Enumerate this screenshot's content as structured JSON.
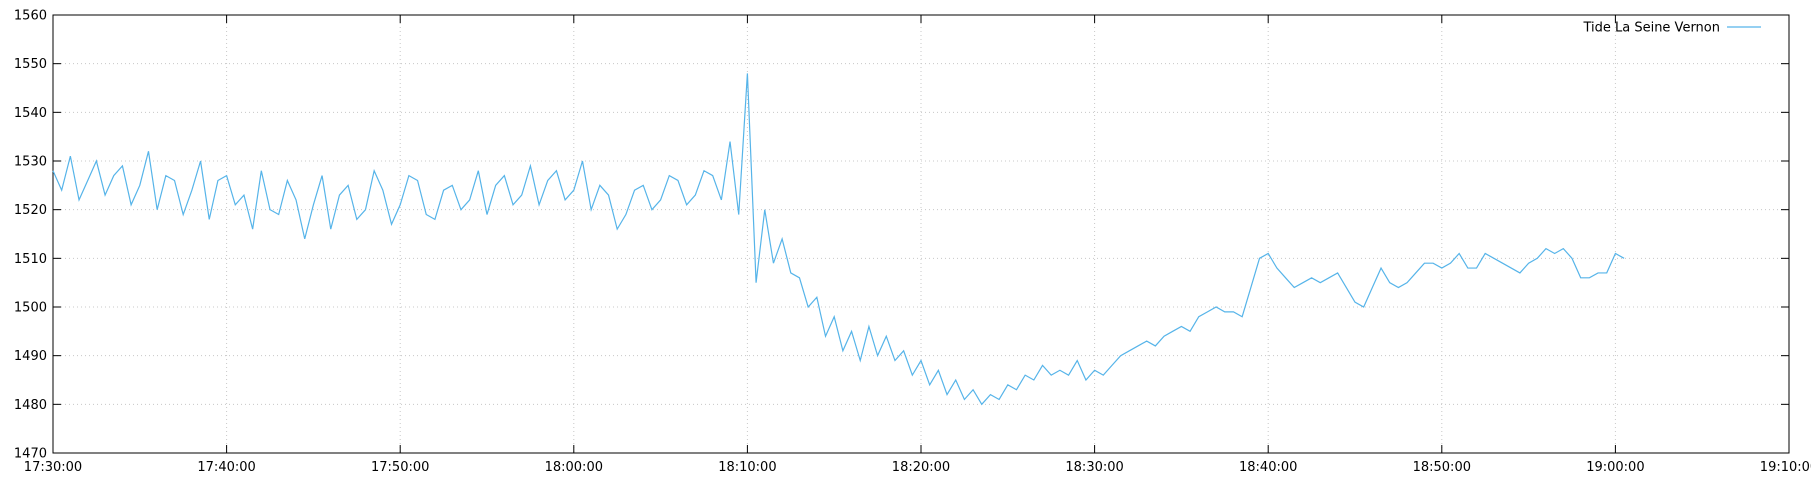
{
  "chart_data": {
    "type": "line",
    "x": [
      "17:30:00",
      "17:30:30",
      "17:31:00",
      "17:31:30",
      "17:32:00",
      "17:32:30",
      "17:33:00",
      "17:33:30",
      "17:34:00",
      "17:34:30",
      "17:35:00",
      "17:35:30",
      "17:36:00",
      "17:36:30",
      "17:37:00",
      "17:37:30",
      "17:38:00",
      "17:38:30",
      "17:39:00",
      "17:39:30",
      "17:40:00",
      "17:40:30",
      "17:41:00",
      "17:41:30",
      "17:42:00",
      "17:42:30",
      "17:43:00",
      "17:43:30",
      "17:44:00",
      "17:44:30",
      "17:45:00",
      "17:45:30",
      "17:46:00",
      "17:46:30",
      "17:47:00",
      "17:47:30",
      "17:48:00",
      "17:48:30",
      "17:49:00",
      "17:49:30",
      "17:50:00",
      "17:50:30",
      "17:51:00",
      "17:51:30",
      "17:52:00",
      "17:52:30",
      "17:53:00",
      "17:53:30",
      "17:54:00",
      "17:54:30",
      "17:55:00",
      "17:55:30",
      "17:56:00",
      "17:56:30",
      "17:57:00",
      "17:57:30",
      "17:58:00",
      "17:58:30",
      "17:59:00",
      "17:59:30",
      "18:00:00",
      "18:00:30",
      "18:01:00",
      "18:01:30",
      "18:02:00",
      "18:02:30",
      "18:03:00",
      "18:03:30",
      "18:04:00",
      "18:04:30",
      "18:05:00",
      "18:05:30",
      "18:06:00",
      "18:06:30",
      "18:07:00",
      "18:07:30",
      "18:08:00",
      "18:08:30",
      "18:09:00",
      "18:09:30",
      "18:10:00",
      "18:10:30",
      "18:11:00",
      "18:11:30",
      "18:12:00",
      "18:12:30",
      "18:13:00",
      "18:13:30",
      "18:14:00",
      "18:14:30",
      "18:15:00",
      "18:15:30",
      "18:16:00",
      "18:16:30",
      "18:17:00",
      "18:17:30",
      "18:18:00",
      "18:18:30",
      "18:19:00",
      "18:19:30",
      "18:20:00",
      "18:20:30",
      "18:21:00",
      "18:21:30",
      "18:22:00",
      "18:22:30",
      "18:23:00",
      "18:23:30",
      "18:24:00",
      "18:24:30",
      "18:25:00",
      "18:25:30",
      "18:26:00",
      "18:26:30",
      "18:27:00",
      "18:27:30",
      "18:28:00",
      "18:28:30",
      "18:29:00",
      "18:29:30",
      "18:30:00",
      "18:30:30",
      "18:31:00",
      "18:31:30",
      "18:32:00",
      "18:32:30",
      "18:33:00",
      "18:33:30",
      "18:34:00",
      "18:34:30",
      "18:35:00",
      "18:35:30",
      "18:36:00",
      "18:36:30",
      "18:37:00",
      "18:37:30",
      "18:38:00",
      "18:38:30",
      "18:39:00",
      "18:39:30",
      "18:40:00",
      "18:40:30",
      "18:41:00",
      "18:41:30",
      "18:42:00",
      "18:42:30",
      "18:43:00",
      "18:43:30",
      "18:44:00",
      "18:44:30",
      "18:45:00",
      "18:45:30",
      "18:46:00",
      "18:46:30",
      "18:47:00",
      "18:47:30",
      "18:48:00",
      "18:48:30",
      "18:49:00",
      "18:49:30",
      "18:50:00",
      "18:50:30",
      "18:51:00",
      "18:51:30",
      "18:52:00",
      "18:52:30",
      "18:53:00",
      "18:53:30",
      "18:54:00",
      "18:54:30",
      "18:55:00",
      "18:55:30",
      "18:56:00",
      "18:56:30",
      "18:57:00",
      "18:57:30",
      "18:58:00",
      "18:58:30",
      "18:59:00",
      "18:59:30",
      "19:00:00",
      "19:00:30"
    ],
    "series": [
      {
        "name": "Tide La Seine Vernon",
        "color": "#56b4e9",
        "values": [
          1528,
          1524,
          1531,
          1522,
          1526,
          1530,
          1523,
          1527,
          1529,
          1521,
          1525,
          1532,
          1520,
          1527,
          1526,
          1519,
          1524,
          1530,
          1518,
          1526,
          1527,
          1521,
          1523,
          1516,
          1528,
          1520,
          1519,
          1526,
          1522,
          1514,
          1521,
          1527,
          1516,
          1523,
          1525,
          1518,
          1520,
          1528,
          1524,
          1517,
          1521,
          1527,
          1526,
          1519,
          1518,
          1524,
          1525,
          1520,
          1522,
          1528,
          1519,
          1525,
          1527,
          1521,
          1523,
          1529,
          1521,
          1526,
          1528,
          1522,
          1524,
          1530,
          1520,
          1525,
          1523,
          1516,
          1519,
          1524,
          1525,
          1520,
          1522,
          1527,
          1526,
          1521,
          1523,
          1528,
          1527,
          1522,
          1534,
          1519,
          1548,
          1505,
          1520,
          1509,
          1514,
          1507,
          1506,
          1500,
          1502,
          1494,
          1498,
          1491,
          1495,
          1489,
          1496,
          1490,
          1494,
          1489,
          1491,
          1486,
          1489,
          1484,
          1487,
          1482,
          1485,
          1481,
          1483,
          1480,
          1482,
          1481,
          1484,
          1483,
          1486,
          1485,
          1488,
          1486,
          1487,
          1486,
          1489,
          1485,
          1487,
          1486,
          1488,
          1490,
          1491,
          1492,
          1493,
          1492,
          1494,
          1495,
          1496,
          1495,
          1498,
          1499,
          1500,
          1499,
          1499,
          1498,
          1504,
          1510,
          1511,
          1508,
          1506,
          1504,
          1505,
          1506,
          1505,
          1506,
          1507,
          1504,
          1501,
          1500,
          1504,
          1508,
          1505,
          1504,
          1505,
          1507,
          1509,
          1509,
          1508,
          1509,
          1511,
          1508,
          1508,
          1511,
          1510,
          1509,
          1508,
          1507,
          1509,
          1510,
          1512,
          1511,
          1512,
          1510,
          1506,
          1506,
          1507,
          1507,
          1511,
          1510
        ]
      }
    ],
    "xlim": [
      "17:30:00",
      "19:10:00"
    ],
    "xticks": [
      "17:30:00",
      "17:40:00",
      "17:50:00",
      "18:00:00",
      "18:10:00",
      "18:20:00",
      "18:30:00",
      "18:40:00",
      "18:50:00",
      "19:00:00",
      "19:10:00"
    ],
    "ylim": [
      1470,
      1560
    ],
    "yticks": [
      1470,
      1480,
      1490,
      1500,
      1510,
      1520,
      1530,
      1540,
      1550,
      1560
    ],
    "grid": true,
    "legend": "top-right"
  }
}
